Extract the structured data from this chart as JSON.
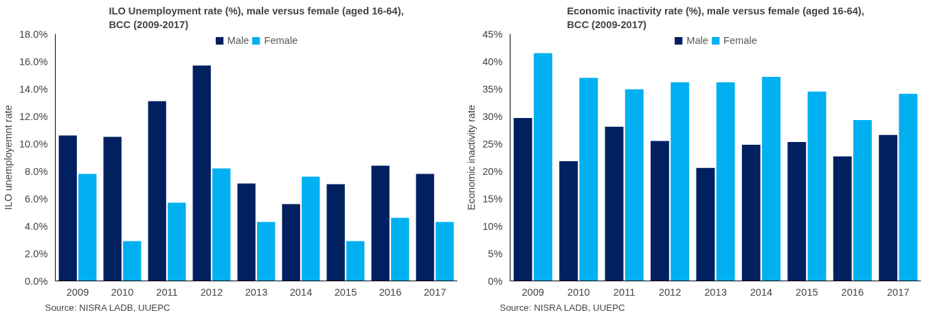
{
  "chart_data": [
    {
      "type": "bar",
      "title": "ILO Unemployment rate (%), male versus female (aged 16-64), BCC (2009-2017)",
      "ylabel": "ILO unemployemnt rate",
      "categories": [
        "2009",
        "2010",
        "2011",
        "2012",
        "2013",
        "2014",
        "2015",
        "2016",
        "2017"
      ],
      "series": [
        {
          "name": "Male",
          "color": "#002060",
          "values": [
            10.6,
            10.5,
            13.1,
            15.7,
            7.1,
            5.6,
            7.05,
            8.4,
            7.8
          ]
        },
        {
          "name": "Female",
          "color": "#00b0f0",
          "values": [
            7.8,
            2.9,
            5.7,
            8.2,
            4.3,
            7.6,
            2.9,
            4.6,
            4.3
          ]
        }
      ],
      "ylim": [
        0,
        18
      ],
      "yticks": [
        {
          "value": 0,
          "label": "0.0%"
        },
        {
          "value": 2,
          "label": "2.0%"
        },
        {
          "value": 4,
          "label": "4.0%"
        },
        {
          "value": 6,
          "label": "6.0%"
        },
        {
          "value": 8,
          "label": "8.0%"
        },
        {
          "value": 10,
          "label": "10.0%"
        },
        {
          "value": 12,
          "label": "12.0%"
        },
        {
          "value": 14,
          "label": "14.0%"
        },
        {
          "value": 16,
          "label": "16.0%"
        },
        {
          "value": 18,
          "label": "18.0%"
        }
      ],
      "grid": false,
      "legend": "top",
      "annotations": [
        "Source: NISRA LADB, UUEPC"
      ]
    },
    {
      "type": "bar",
      "title": "Economic inactivity rate (%), male versus female (aged 16-64), BCC (2009-2017)",
      "ylabel": "Economic inactivity rate",
      "categories": [
        "2009",
        "2010",
        "2011",
        "2012",
        "2013",
        "2014",
        "2015",
        "2016",
        "2017"
      ],
      "series": [
        {
          "name": "Male",
          "color": "#002060",
          "values": [
            29.7,
            21.8,
            28.1,
            25.5,
            20.6,
            24.8,
            25.3,
            22.7,
            26.6
          ]
        },
        {
          "name": "Female",
          "color": "#00b0f0",
          "values": [
            41.5,
            37.0,
            34.9,
            36.2,
            36.2,
            37.2,
            34.5,
            29.3,
            34.1
          ]
        }
      ],
      "ylim": [
        0,
        45
      ],
      "yticks": [
        {
          "value": 0,
          "label": "0%"
        },
        {
          "value": 5,
          "label": "5%"
        },
        {
          "value": 10,
          "label": "10%"
        },
        {
          "value": 15,
          "label": "15%"
        },
        {
          "value": 20,
          "label": "20%"
        },
        {
          "value": 25,
          "label": "25%"
        },
        {
          "value": 30,
          "label": "30%"
        },
        {
          "value": 35,
          "label": "35%"
        },
        {
          "value": 40,
          "label": "40%"
        },
        {
          "value": 45,
          "label": "45%"
        }
      ],
      "grid": false,
      "legend": "top",
      "annotations": [
        "Source: NISRA LADB, UUEPC"
      ]
    }
  ]
}
